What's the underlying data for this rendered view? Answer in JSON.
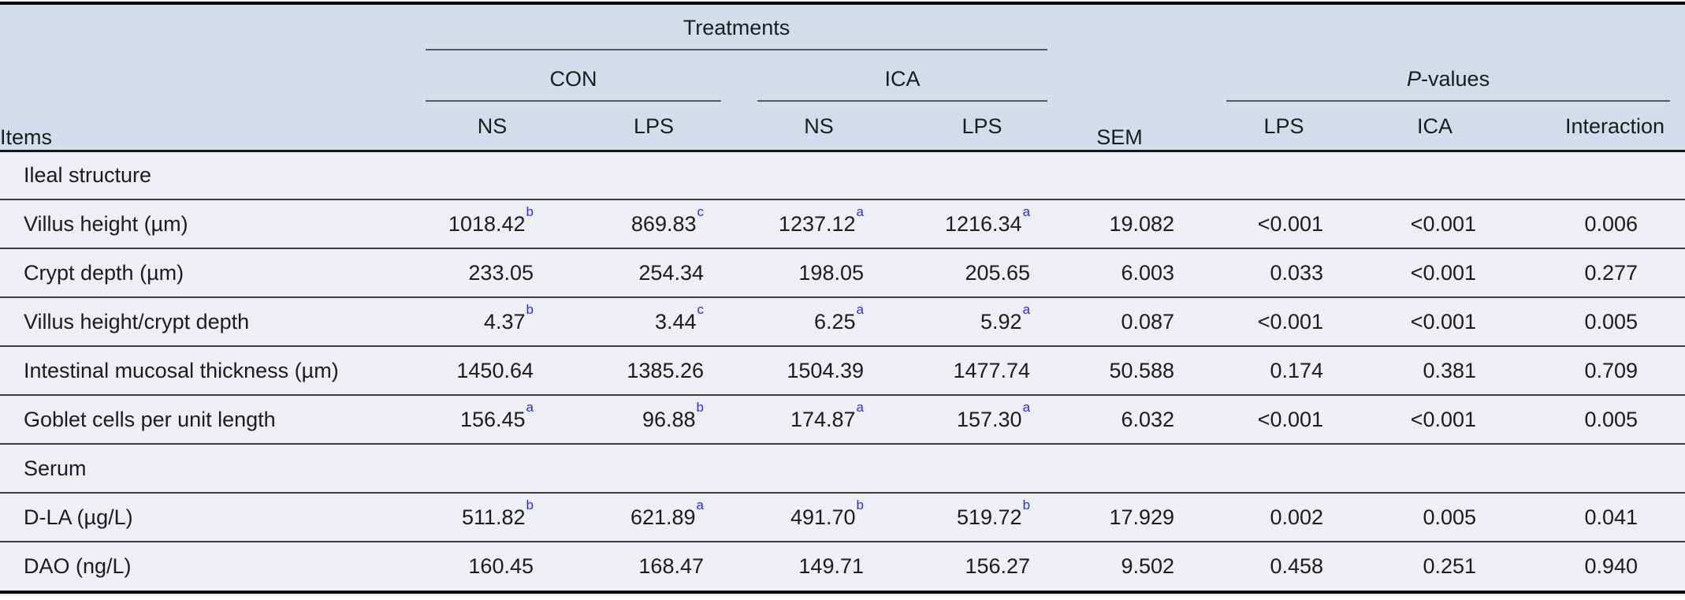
{
  "table": {
    "header": {
      "items": "Items",
      "treatments": "Treatments",
      "con": "CON",
      "ica": "ICA",
      "sem": "SEM",
      "pvalues_italic": "P",
      "pvalues_rest": "-values",
      "con_ns": "NS",
      "con_lps": "LPS",
      "ica_ns": "NS",
      "ica_lps": "LPS",
      "p_lps": "LPS",
      "p_ica": "ICA",
      "p_interaction": "Interaction"
    },
    "rows": [
      {
        "type": "section",
        "label": "Ileal structure"
      },
      {
        "type": "data",
        "label": "Villus height (µm)",
        "values": [
          {
            "v": "1018.42",
            "sup": "b"
          },
          {
            "v": "869.83",
            "sup": "c"
          },
          {
            "v": "1237.12",
            "sup": "a"
          },
          {
            "v": "1216.34",
            "sup": "a"
          },
          {
            "v": "19.082"
          },
          {
            "v": "<0.001"
          },
          {
            "v": "<0.001"
          },
          {
            "v": "0.006"
          }
        ]
      },
      {
        "type": "data",
        "label": "Crypt depth (µm)",
        "values": [
          {
            "v": "233.05"
          },
          {
            "v": "254.34"
          },
          {
            "v": "198.05"
          },
          {
            "v": "205.65"
          },
          {
            "v": "6.003"
          },
          {
            "v": "0.033"
          },
          {
            "v": "<0.001"
          },
          {
            "v": "0.277"
          }
        ]
      },
      {
        "type": "data",
        "label": "Villus height/crypt depth",
        "values": [
          {
            "v": "4.37",
            "sup": "b"
          },
          {
            "v": "3.44",
            "sup": "c"
          },
          {
            "v": "6.25",
            "sup": "a"
          },
          {
            "v": "5.92",
            "sup": "a"
          },
          {
            "v": "0.087"
          },
          {
            "v": "<0.001"
          },
          {
            "v": "<0.001"
          },
          {
            "v": "0.005"
          }
        ]
      },
      {
        "type": "data",
        "label": "Intestinal mucosal thickness (µm)",
        "values": [
          {
            "v": "1450.64"
          },
          {
            "v": "1385.26"
          },
          {
            "v": "1504.39"
          },
          {
            "v": "1477.74"
          },
          {
            "v": "50.588"
          },
          {
            "v": "0.174"
          },
          {
            "v": "0.381"
          },
          {
            "v": "0.709"
          }
        ]
      },
      {
        "type": "data",
        "label": "Goblet cells per unit length",
        "values": [
          {
            "v": "156.45",
            "sup": "a"
          },
          {
            "v": "96.88",
            "sup": "b"
          },
          {
            "v": "174.87",
            "sup": "a"
          },
          {
            "v": "157.30",
            "sup": "a"
          },
          {
            "v": "6.032"
          },
          {
            "v": "<0.001"
          },
          {
            "v": "<0.001"
          },
          {
            "v": "0.005"
          }
        ]
      },
      {
        "type": "section",
        "label": "Serum"
      },
      {
        "type": "data",
        "label": "D-LA (µg/L)",
        "values": [
          {
            "v": "511.82",
            "sup": "b"
          },
          {
            "v": "621.89",
            "sup": "a"
          },
          {
            "v": "491.70",
            "sup": "b"
          },
          {
            "v": "519.72",
            "sup": "b"
          },
          {
            "v": "17.929"
          },
          {
            "v": "0.002"
          },
          {
            "v": "0.005"
          },
          {
            "v": "0.041"
          }
        ]
      },
      {
        "type": "data",
        "label": "DAO (ng/L)",
        "values": [
          {
            "v": "160.45"
          },
          {
            "v": "168.47"
          },
          {
            "v": "149.71"
          },
          {
            "v": "156.27"
          },
          {
            "v": "9.502"
          },
          {
            "v": "0.458"
          },
          {
            "v": "0.251"
          },
          {
            "v": "0.940"
          }
        ]
      }
    ],
    "colors": {
      "header_bg": "#d3dcea",
      "body_bg": "#edeff4",
      "superscript_blue": "#2b2be0"
    }
  }
}
